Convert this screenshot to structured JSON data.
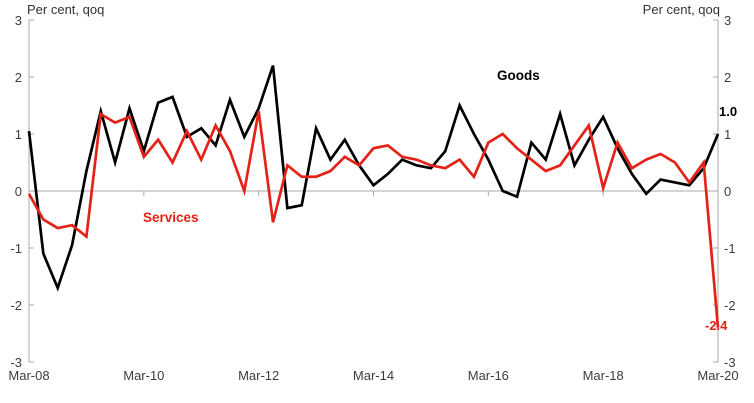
{
  "header": {
    "left_axis_title": "Per cent, qoq",
    "right_axis_title": "Per cent, qoq"
  },
  "chart_data": {
    "type": "line",
    "title": "",
    "frequency": "quarterly",
    "x_start": "Mar-08",
    "x_end": "Mar-20",
    "x_tick_labels": [
      "Mar-08",
      "Mar-10",
      "Mar-12",
      "Mar-14",
      "Mar-16",
      "Mar-18",
      "Mar-20"
    ],
    "y_ticks": [
      3,
      2,
      1,
      0,
      -1,
      -2,
      -3
    ],
    "ylim": [
      -3,
      3
    ],
    "ylabel_left": "Per cent, qoq",
    "ylabel_right": "Per cent, qoq",
    "grid": "zero-line-only",
    "legend_position": "inline-annotations",
    "axis_color": "#aaaaaa",
    "series": [
      {
        "name": "Goods",
        "color": "#000000",
        "end_label": "1.0",
        "values": [
          1.05,
          -1.1,
          -1.7,
          -0.95,
          0.35,
          1.4,
          0.5,
          1.45,
          0.7,
          1.55,
          1.65,
          0.95,
          1.1,
          0.8,
          1.6,
          0.95,
          1.45,
          2.2,
          -0.3,
          -0.25,
          1.1,
          0.55,
          0.9,
          0.45,
          0.1,
          0.3,
          0.55,
          0.45,
          0.4,
          0.7,
          1.5,
          1.0,
          0.55,
          0.0,
          -0.1,
          0.85,
          0.55,
          1.35,
          0.45,
          0.9,
          1.3,
          0.75,
          0.3,
          -0.05,
          0.2,
          0.15,
          0.1,
          0.4,
          1.0
        ]
      },
      {
        "name": "Services",
        "color": "#e42318",
        "end_label": "-2.4",
        "values": [
          -0.05,
          -0.5,
          -0.65,
          -0.6,
          -0.8,
          1.35,
          1.2,
          1.3,
          0.6,
          0.9,
          0.5,
          1.05,
          0.55,
          1.15,
          0.7,
          0.0,
          1.4,
          -0.55,
          0.45,
          0.25,
          0.25,
          0.35,
          0.6,
          0.45,
          0.75,
          0.8,
          0.6,
          0.55,
          0.45,
          0.4,
          0.55,
          0.25,
          0.85,
          1.0,
          0.75,
          0.55,
          0.35,
          0.45,
          0.8,
          1.15,
          0.05,
          0.85,
          0.4,
          0.55,
          0.65,
          0.5,
          0.15,
          0.5,
          -2.4
        ]
      }
    ],
    "annotations": [
      {
        "text": "Goods",
        "series": "Goods"
      },
      {
        "text": "Services",
        "series": "Services"
      },
      {
        "text": "1.0",
        "series": "Goods",
        "role": "last-value"
      },
      {
        "text": "-2.4",
        "series": "Services",
        "role": "last-value"
      }
    ]
  }
}
